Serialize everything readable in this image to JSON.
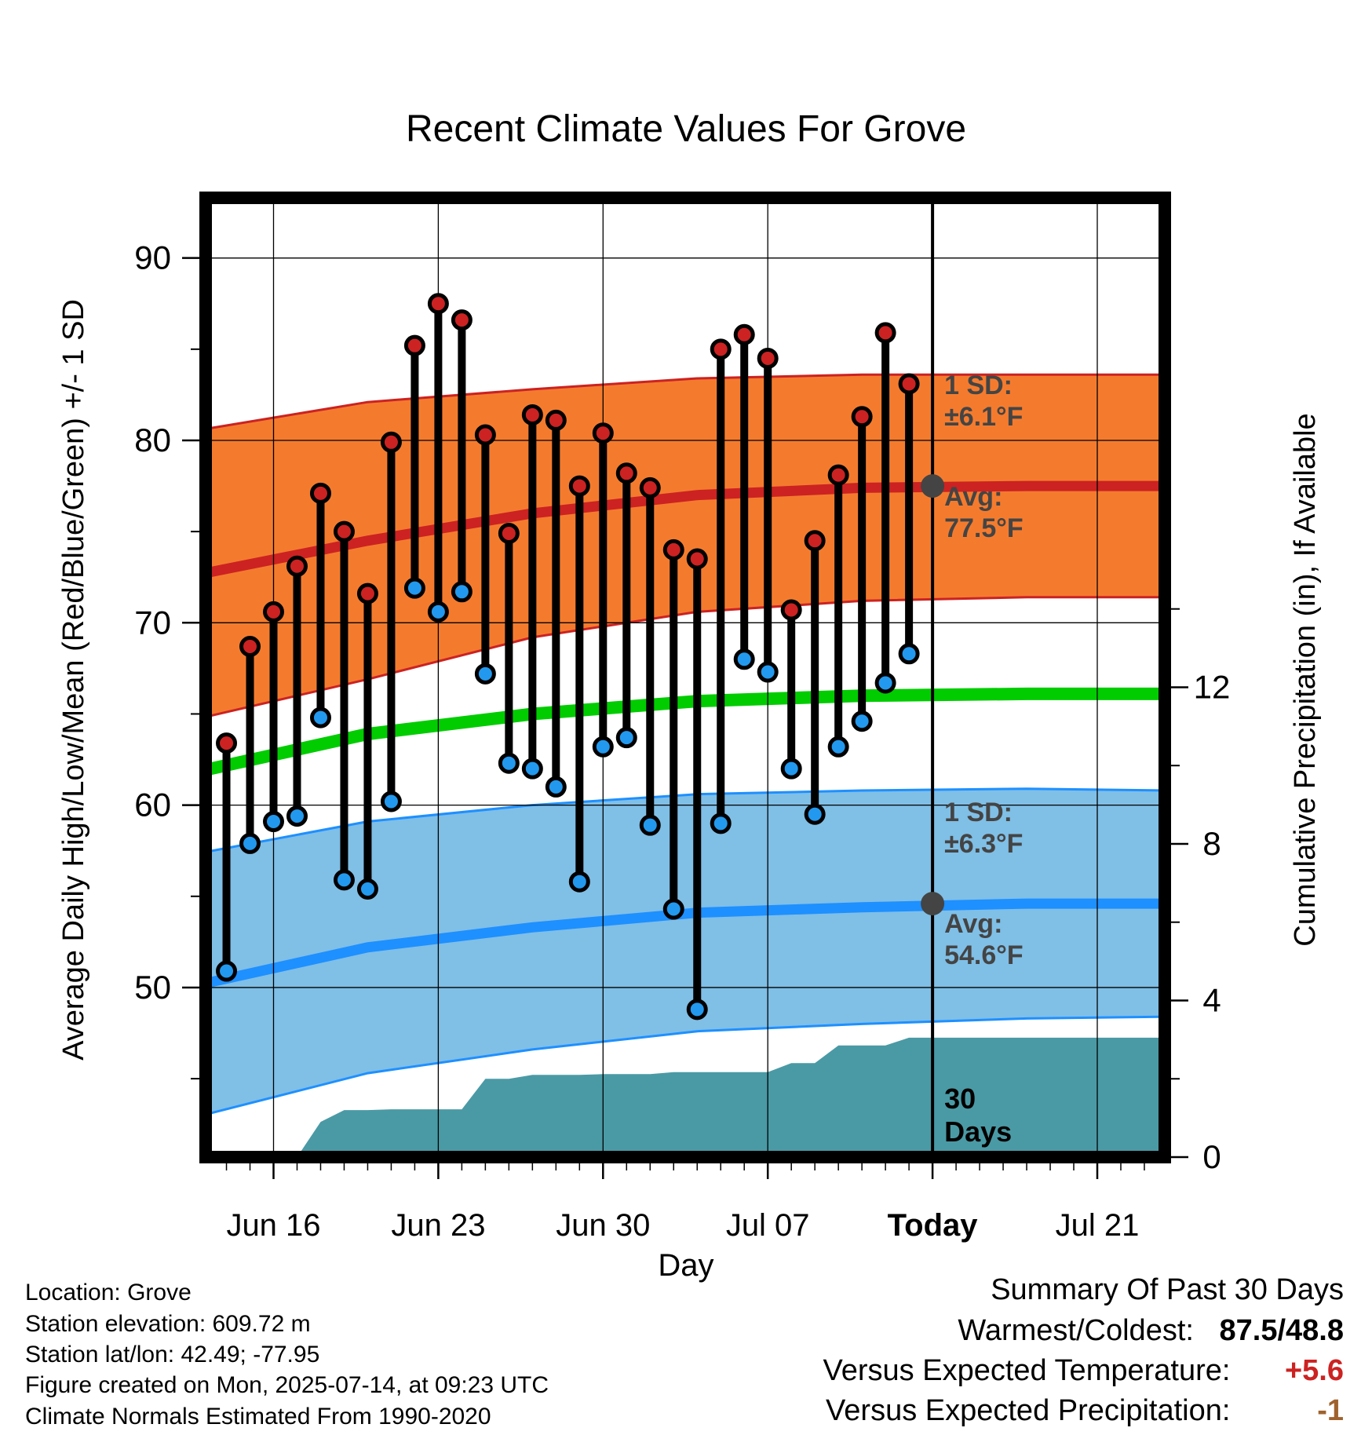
{
  "title": "Recent Climate Values For Grove",
  "chart_data": {
    "type": "line",
    "title": "Recent Climate Values For Grove",
    "xlabel": "Day",
    "ylabel_left": "Average Daily High/Low/Mean (Red/Blue/Green) +/- 1 SD",
    "ylabel_right": "Cumulative Precipitation (in), If Available",
    "x_tick_labels": [
      "Jun 16",
      "Jun 23",
      "Jun 30",
      "Jul 07",
      "Today",
      "Jul 21"
    ],
    "y_left_ticks": [
      "50",
      "60",
      "70",
      "80",
      "90"
    ],
    "y_right_ticks": [
      "0",
      "4",
      "8",
      "12"
    ],
    "ylim_left": [
      40.7,
      93.3
    ],
    "ylim_right": [
      0,
      24.5
    ],
    "grid": true,
    "today_marker_label": "30 Days",
    "observed": {
      "dates": [
        "2025-06-14",
        "2025-06-15",
        "2025-06-16",
        "2025-06-17",
        "2025-06-18",
        "2025-06-19",
        "2025-06-20",
        "2025-06-21",
        "2025-06-22",
        "2025-06-23",
        "2025-06-24",
        "2025-06-25",
        "2025-06-26",
        "2025-06-27",
        "2025-06-28",
        "2025-06-29",
        "2025-06-30",
        "2025-07-01",
        "2025-07-02",
        "2025-07-03",
        "2025-07-04",
        "2025-07-05",
        "2025-07-06",
        "2025-07-07",
        "2025-07-08",
        "2025-07-09",
        "2025-07-10",
        "2025-07-11",
        "2025-07-12",
        "2025-07-13"
      ],
      "highs": [
        63.4,
        68.7,
        70.6,
        73.1,
        77.1,
        75.0,
        71.6,
        79.9,
        85.2,
        87.5,
        86.6,
        80.3,
        74.9,
        81.4,
        81.1,
        77.5,
        80.4,
        78.2,
        77.4,
        74.0,
        73.5,
        85.0,
        85.8,
        84.5,
        70.7,
        74.5,
        78.1,
        81.3,
        85.9,
        83.1
      ],
      "lows": [
        50.9,
        57.9,
        59.1,
        59.4,
        64.8,
        55.9,
        55.4,
        60.2,
        71.9,
        70.6,
        71.7,
        67.2,
        62.3,
        62.0,
        61.0,
        55.8,
        63.2,
        63.7,
        58.9,
        54.3,
        48.8,
        59.0,
        68.0,
        67.3,
        62.0,
        59.5,
        63.2,
        64.6,
        66.7,
        68.3
      ],
      "high_color": "#cc2222",
      "low_color": "#2299ee"
    },
    "normals": {
      "dates": [
        "2025-06-13",
        "2025-06-20",
        "2025-06-27",
        "2025-07-04",
        "2025-07-11",
        "2025-07-18",
        "2025-07-24"
      ],
      "high_avg": [
        72.7,
        74.5,
        76.0,
        77.0,
        77.4,
        77.5,
        77.5
      ],
      "high_sd": [
        7.9,
        7.6,
        6.8,
        6.4,
        6.2,
        6.1,
        6.1
      ],
      "mean_avg": [
        61.9,
        63.9,
        65.0,
        65.7,
        66.0,
        66.1,
        66.1
      ],
      "low_avg": [
        50.2,
        52.2,
        53.3,
        54.1,
        54.4,
        54.6,
        54.6
      ],
      "low_sd": [
        7.2,
        6.9,
        6.7,
        6.5,
        6.4,
        6.3,
        6.2
      ],
      "high_band_color": "#f47b2e",
      "high_line_color": "#cc2222",
      "mean_line_color": "#00cc00",
      "low_band_color": "#80bfe6",
      "low_line_color": "#1e90ff"
    },
    "precipitation": {
      "dates": [
        "2025-06-16",
        "2025-06-17",
        "2025-06-18",
        "2025-06-19",
        "2025-06-20",
        "2025-06-21",
        "2025-06-22",
        "2025-06-23",
        "2025-06-24",
        "2025-06-25",
        "2025-06-26",
        "2025-06-27",
        "2025-06-28",
        "2025-06-29",
        "2025-06-30",
        "2025-07-01",
        "2025-07-02",
        "2025-07-03",
        "2025-07-04",
        "2025-07-05",
        "2025-07-06",
        "2025-07-07",
        "2025-07-08",
        "2025-07-09",
        "2025-07-10",
        "2025-07-11",
        "2025-07-12",
        "2025-07-13",
        "2025-07-14",
        "2025-07-24"
      ],
      "cumulative": [
        0,
        0,
        0.9,
        1.2,
        1.2,
        1.22,
        1.22,
        1.22,
        1.22,
        2.0,
        2.0,
        2.1,
        2.1,
        2.1,
        2.12,
        2.12,
        2.12,
        2.17,
        2.17,
        2.17,
        2.17,
        2.17,
        2.4,
        2.4,
        2.85,
        2.85,
        2.85,
        3.05,
        3.05,
        3.05
      ],
      "color": "#4a9aa5"
    },
    "today_labels": {
      "high_sd": "1 SD:\n±6.1°F",
      "high_avg": "Avg:\n77.5°F",
      "low_sd": "1 SD:\n±6.3°F",
      "low_avg": "Avg:\n54.6°F"
    }
  },
  "meta": {
    "location": "Location: Grove",
    "elevation": "Station elevation: 609.72 m",
    "latlon": "Station lat/lon: 42.49; -77.95",
    "created": "Figure created on Mon, 2025-07-14, at 09:23 UTC",
    "normals": "Climate Normals Estimated From 1990-2020"
  },
  "summary": {
    "heading": "Summary Of Past 30 Days",
    "warm_cold_label": "Warmest/Coldest:",
    "warm_cold_value": "87.5/48.8",
    "temp_label": "Versus Expected Temperature:",
    "temp_value": "+5.6",
    "temp_color": "#cc2222",
    "precip_label": "Versus Expected Precipitation:",
    "precip_value": "-1",
    "precip_color": "#a0622d"
  }
}
